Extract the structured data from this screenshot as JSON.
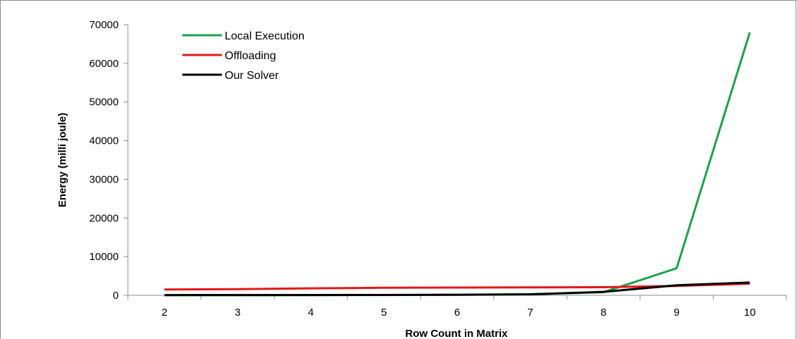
{
  "chart_data": {
    "type": "line",
    "title": "",
    "xlabel": "Row Count in Matrix",
    "ylabel": "Energy (milli joule)",
    "categories": [
      "2",
      "3",
      "4",
      "5",
      "6",
      "7",
      "8",
      "9",
      "10"
    ],
    "x": [
      2,
      3,
      4,
      5,
      6,
      7,
      8,
      9,
      10
    ],
    "ylim": [
      0,
      70000
    ],
    "yticks": [
      "0",
      "10000",
      "20000",
      "30000",
      "40000",
      "50000",
      "60000",
      "70000"
    ],
    "grid": false,
    "legend_position": "top-left",
    "series": [
      {
        "name": "Local Execution",
        "color": "#1aa34a",
        "values": [
          10,
          20,
          40,
          80,
          150,
          300,
          800,
          7000,
          68000
        ]
      },
      {
        "name": "Offloading",
        "color": "#e3171b",
        "values": [
          1500,
          1600,
          1800,
          1950,
          2000,
          2050,
          2100,
          2400,
          3000
        ]
      },
      {
        "name": "Our Solver",
        "color": "#000000",
        "values": [
          60,
          70,
          80,
          100,
          150,
          250,
          900,
          2600,
          3300
        ]
      }
    ]
  }
}
